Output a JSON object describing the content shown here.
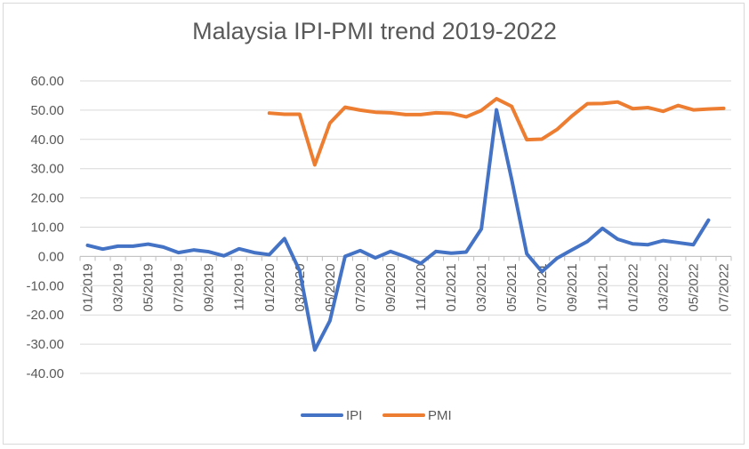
{
  "chart_data": {
    "type": "line",
    "title": "Malaysia IPI-PMI trend 2019-2022",
    "xlabel": "",
    "ylabel": "",
    "ylim": [
      -40,
      60
    ],
    "yticks": [
      "60.00",
      "50.00",
      "40.00",
      "30.00",
      "20.00",
      "10.00",
      "0.00",
      "-10.00",
      "-20.00",
      "-30.00",
      "-40.00"
    ],
    "x": [
      "01/2019",
      "02/2019",
      "03/2019",
      "04/2019",
      "05/2019",
      "06/2019",
      "07/2019",
      "08/2019",
      "09/2019",
      "10/2019",
      "11/2019",
      "12/2019",
      "01/2020",
      "02/2020",
      "03/2020",
      "04/2020",
      "05/2020",
      "06/2020",
      "07/2020",
      "08/2020",
      "09/2020",
      "10/2020",
      "11/2020",
      "12/2020",
      "01/2021",
      "02/2021",
      "03/2021",
      "04/2021",
      "05/2021",
      "06/2021",
      "07/2021",
      "08/2021",
      "09/2021",
      "10/2021",
      "11/2021",
      "12/2021",
      "01/2022",
      "02/2022",
      "03/2022",
      "04/2022",
      "05/2022",
      "06/2022",
      "07/2022"
    ],
    "xtick_labels": [
      "01/2019",
      "03/2019",
      "05/2019",
      "07/2019",
      "09/2019",
      "11/2019",
      "01/2020",
      "03/2020",
      "05/2020",
      "07/2020",
      "09/2020",
      "11/2020",
      "01/2021",
      "03/2021",
      "05/2021",
      "07/2021",
      "09/2021",
      "11/2021",
      "01/2022",
      "03/2022",
      "05/2022",
      "07/2022"
    ],
    "grid": true,
    "legend_position": "bottom",
    "series": [
      {
        "name": "IPI",
        "color": "#4472c4",
        "values": [
          3.8,
          2.5,
          3.5,
          3.5,
          4.2,
          3.2,
          1.3,
          2.2,
          1.6,
          0.2,
          2.6,
          1.3,
          0.6,
          6.1,
          -4.9,
          -32.0,
          -22.0,
          0.0,
          2.0,
          -0.5,
          1.7,
          -0.1,
          -2.4,
          1.7,
          1.1,
          1.5,
          9.4,
          50.1,
          26.4,
          0.9,
          -5.2,
          -0.6,
          2.3,
          5.1,
          9.6,
          5.9,
          4.3,
          4.0,
          5.4,
          4.7,
          4.0,
          12.4,
          null
        ]
      },
      {
        "name": "PMI",
        "color": "#ed7d31",
        "values": [
          null,
          null,
          null,
          null,
          null,
          null,
          null,
          null,
          null,
          null,
          null,
          null,
          49.0,
          48.6,
          48.6,
          31.3,
          45.6,
          51.0,
          50.0,
          49.3,
          49.1,
          48.5,
          48.5,
          49.1,
          48.9,
          47.7,
          49.9,
          53.9,
          51.3,
          39.9,
          40.1,
          43.4,
          48.1,
          52.2,
          52.3,
          52.8,
          50.5,
          50.9,
          49.6,
          51.6,
          50.1,
          50.4,
          50.6
        ]
      }
    ]
  }
}
